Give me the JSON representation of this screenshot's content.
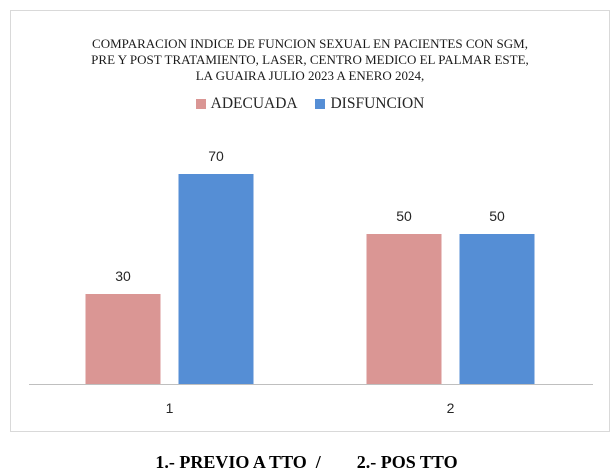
{
  "chart_data": {
    "type": "bar",
    "title_lines": [
      "COMPARACION INDICE DE FUNCION SEXUAL EN PACIENTES CON SGM,",
      "PRE  Y POST TRATAMIENTO, LASER, CENTRO MEDICO EL PALMAR ESTE,",
      "LA GUAIRA JULIO 2023 A ENERO 2024,"
    ],
    "categories": [
      "1",
      "2"
    ],
    "series": [
      {
        "name": "ADECUADA",
        "values": [
          30,
          50
        ],
        "color": "#da9694"
      },
      {
        "name": "DISFUNCION",
        "values": [
          70,
          50
        ],
        "color": "#558ed5"
      }
    ],
    "ylim": [
      0,
      80
    ],
    "grid": false,
    "legend_position": "top"
  },
  "caption": "1.- PREVIO A TTO  /        2.- POS TTO"
}
